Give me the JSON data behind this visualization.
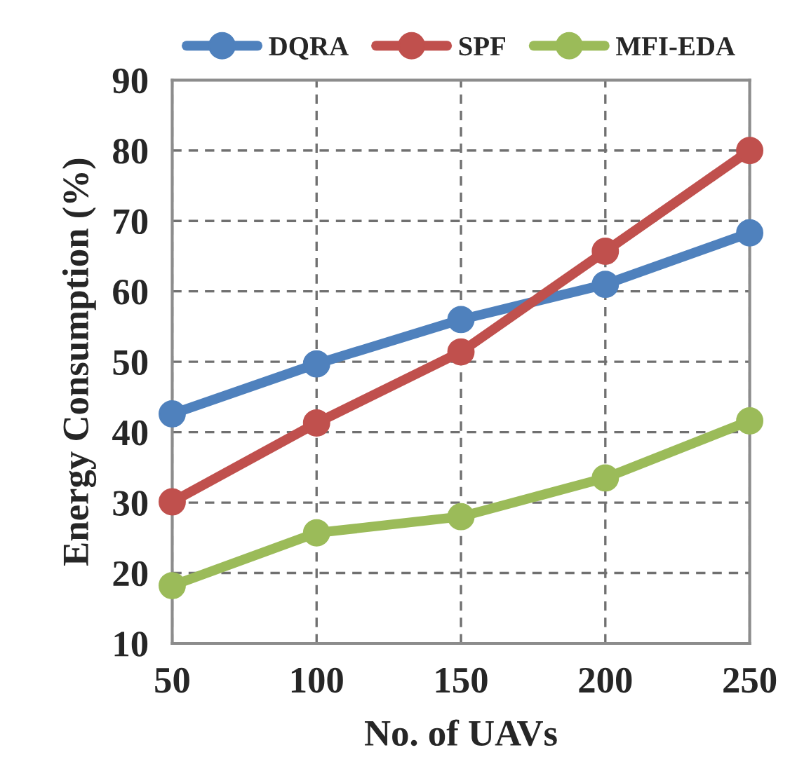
{
  "chart_data": {
    "type": "line",
    "xlabel": "No. of UAVs",
    "ylabel": "Energy Consumption (%)",
    "categories": [
      "50",
      "100",
      "150",
      "200",
      "250"
    ],
    "series": [
      {
        "name": "DQRA",
        "color": "#4f81bd",
        "values": [
          42.6,
          49.7,
          56,
          61,
          68.3
        ]
      },
      {
        "name": "SPF",
        "color": "#c0504d",
        "values": [
          30.1,
          41.3,
          51.4,
          65.7,
          80
        ]
      },
      {
        "name": "MFI-EDA",
        "color": "#9bbb59",
        "values": [
          18.2,
          25.7,
          28,
          33.5,
          41.6
        ]
      }
    ],
    "ylim": [
      10,
      90
    ],
    "yticks": [
      10,
      20,
      30,
      40,
      50,
      60,
      70,
      80,
      90
    ],
    "grid": true,
    "legend": "top",
    "marker": "circle",
    "line_style": "solid"
  }
}
